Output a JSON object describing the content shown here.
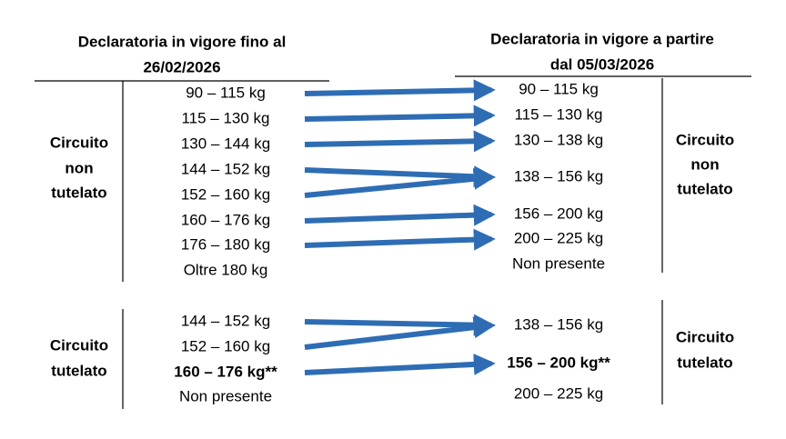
{
  "left_header": [
    "Declaratoria in vigore fino al",
    "26/02/2026"
  ],
  "right_header": [
    "Declaratoria in vigore a partire",
    "dal 05/03/2026"
  ],
  "groups": [
    {
      "left_label": [
        "Circuito",
        "non",
        "tutelato"
      ],
      "right_label": [
        "Circuito",
        "non",
        "tutelato"
      ],
      "left_rows": [
        {
          "text": "90 – 115 kg"
        },
        {
          "text": "115 – 130 kg"
        },
        {
          "text": "130 – 144 kg"
        },
        {
          "text": "144 – 152 kg"
        },
        {
          "text": "152 – 160 kg"
        },
        {
          "text": "160 – 176 kg"
        },
        {
          "text": "176 – 180 kg"
        },
        {
          "text": "Oltre 180 kg"
        }
      ],
      "right_rows": [
        {
          "text": "90 – 115 kg"
        },
        {
          "text": "115 – 130 kg"
        },
        {
          "text": "130 – 138 kg"
        },
        {
          "text": "138 – 156 kg"
        },
        {
          "text": "156 – 200 kg"
        },
        {
          "text": "200 – 225 kg"
        },
        {
          "text": "Non presente"
        }
      ]
    },
    {
      "left_label": [
        "Circuito",
        "tutelato"
      ],
      "right_label": [
        "Circuito",
        "tutelato"
      ],
      "left_rows": [
        {
          "text": "144 – 152 kg"
        },
        {
          "text": "152 – 160 kg"
        },
        {
          "text": "160 – 176 kg**",
          "bold": true
        },
        {
          "text": "Non presente"
        }
      ],
      "right_rows": [
        {
          "text": "138 – 156 kg"
        },
        {
          "text": "156 – 200 kg**",
          "bold": true
        },
        {
          "text": "200 – 225 kg"
        }
      ]
    }
  ]
}
